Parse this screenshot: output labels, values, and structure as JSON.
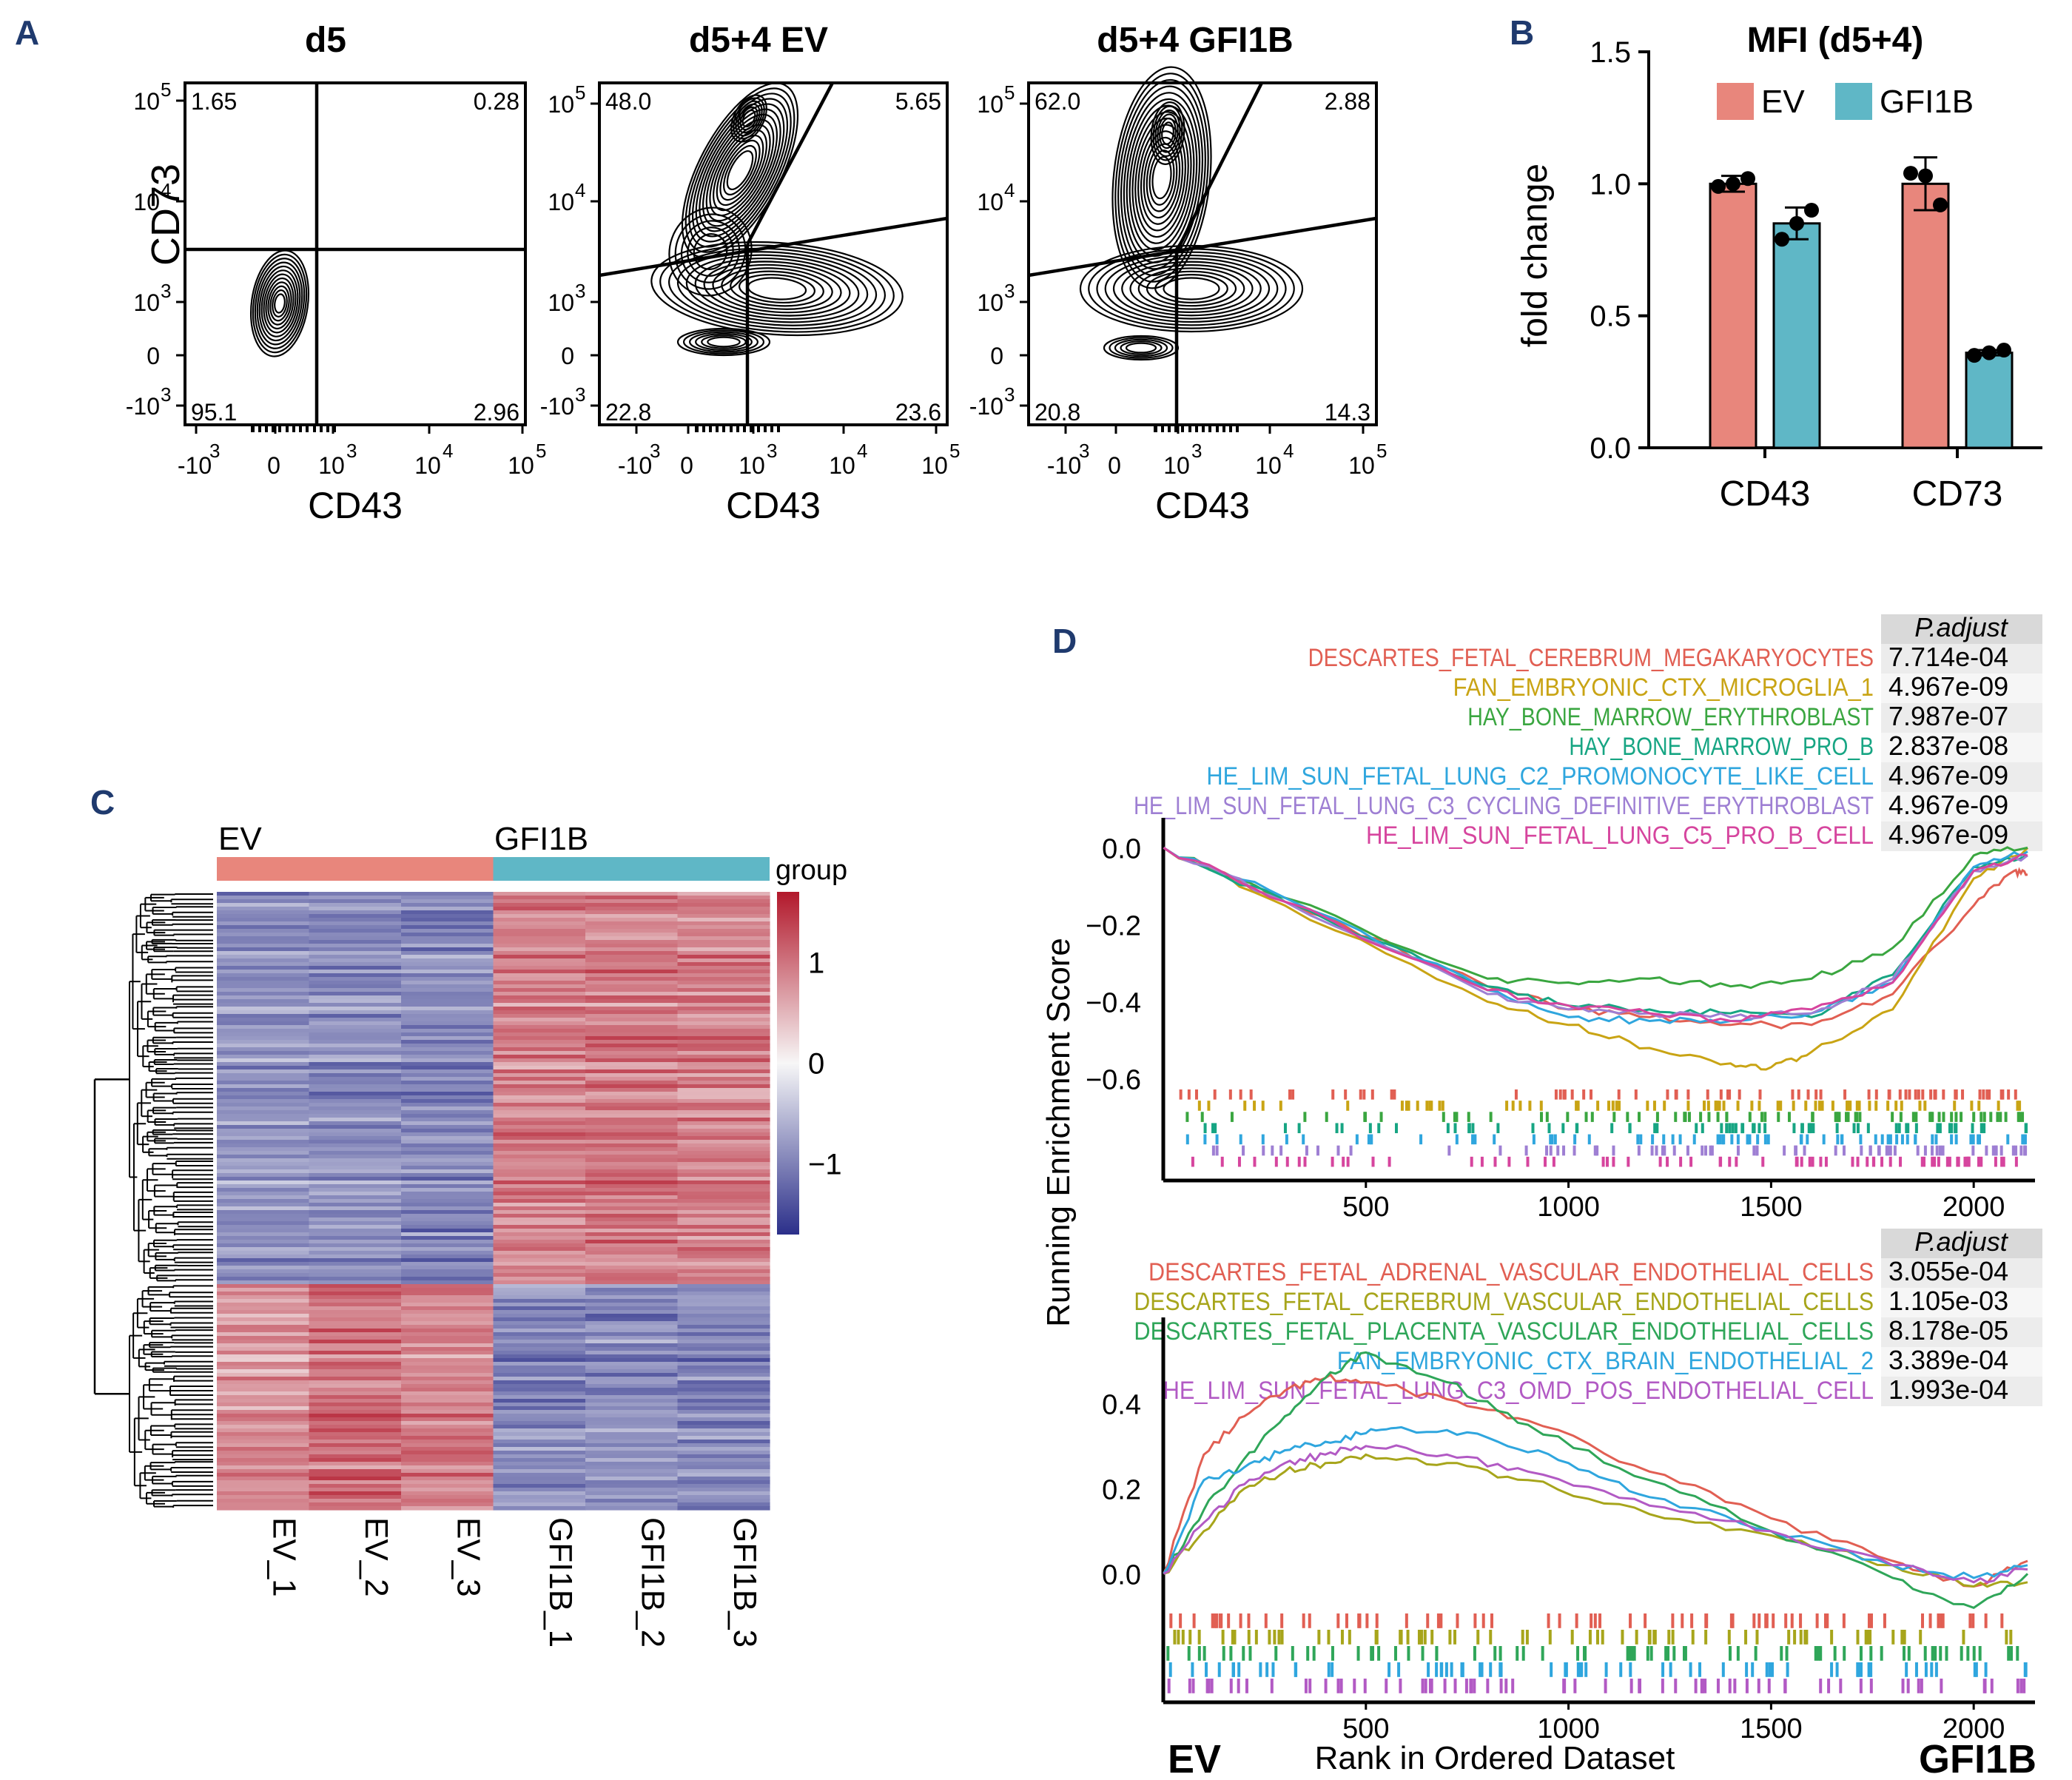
{
  "panel_letters": {
    "A": "A",
    "B": "B",
    "C": "C",
    "D": "D"
  },
  "colors": {
    "ev": "#e8867c",
    "gfi1b": "#5fb7c6",
    "heat_high": "#b2182b",
    "heat_mid": "#f7f7f7",
    "heat_low": "#2b2f8a",
    "gsea": [
      "#e15f53",
      "#c9a414",
      "#3aa640",
      "#17a583",
      "#2fa6de",
      "#9e7fd3",
      "#d6459e"
    ],
    "gsea2": [
      "#e15f53",
      "#a7a51b",
      "#2fa659",
      "#2fa6de",
      "#b25ac4"
    ]
  },
  "panelA": {
    "plots": [
      {
        "title": "d5",
        "quadrants": [
          "1.65",
          "0.28",
          "95.1",
          "2.96"
        ]
      },
      {
        "title": "d5+4 EV",
        "quadrants": [
          "48.0",
          "5.65",
          "22.8",
          "23.6"
        ]
      },
      {
        "title": "d5+4 GFI1B",
        "quadrants": [
          "62.0",
          "2.88",
          "20.8",
          "14.3"
        ]
      }
    ],
    "xlabel": "CD43",
    "ylabel": "CD73",
    "yticks": [
      "10",
      "10",
      "10",
      "0",
      "-10"
    ],
    "yexp": [
      "5",
      "4",
      "3",
      "",
      "3"
    ],
    "xticks": [
      "-10",
      "0",
      "10",
      "10",
      "10"
    ],
    "xexp": [
      "3",
      "",
      "3",
      "4",
      "5"
    ]
  },
  "chart_data": [
    {
      "type": "bar",
      "panel": "B",
      "title": "MFI (d5+4)",
      "categories": [
        "CD43",
        "CD73"
      ],
      "series": [
        {
          "name": "EV",
          "values": [
            1.0,
            1.0
          ],
          "errors": [
            0.03,
            0.1
          ],
          "points": [
            [
              0.99,
              1.0,
              1.02
            ],
            [
              1.04,
              1.03,
              0.92
            ]
          ]
        },
        {
          "name": "GFI1B",
          "values": [
            0.85,
            0.36
          ],
          "errors": [
            0.06,
            0.01
          ],
          "points": [
            [
              0.79,
              0.85,
              0.9
            ],
            [
              0.35,
              0.36,
              0.37
            ]
          ]
        }
      ],
      "ylabel": "fold change",
      "ylim": [
        0,
        1.5
      ],
      "yticks": [
        "0.0",
        "0.5",
        "1.0",
        "1.5"
      ],
      "legend": "top"
    },
    {
      "type": "heatmap",
      "panel": "C",
      "columns": [
        "EV_1",
        "EV_2",
        "EV_3",
        "GFI1B_1",
        "GFI1B_2",
        "GFI1B_3"
      ],
      "groups": [
        {
          "name": "EV",
          "columns": 3
        },
        {
          "name": "GFI1B",
          "columns": 3
        }
      ],
      "annotation_label": "group",
      "colorbar_ticks": [
        "1",
        "0",
        "−1"
      ],
      "colorbar_range": [
        -1.7,
        1.7
      ],
      "blocks": [
        {
          "fraction": 0.634,
          "mean": [
            -0.8,
            -0.85,
            -0.9,
            0.85,
            0.9,
            0.85
          ]
        },
        {
          "fraction": 0.366,
          "mean": [
            0.75,
            1.0,
            0.85,
            -0.9,
            -0.85,
            -0.9
          ]
        }
      ]
    },
    {
      "type": "line",
      "panel": "D-top",
      "header": "P.adjust",
      "series": [
        {
          "name": "DESCARTES_FETAL_CEREBRUM_MEGAKARYOCYTES",
          "padj": "7.714e-04",
          "x": [
            1,
            300,
            800,
            1000,
            1200,
            1400,
            1600,
            1800,
            2000,
            2100,
            2133
          ],
          "y": [
            0,
            -0.14,
            -0.36,
            -0.42,
            -0.44,
            -0.46,
            -0.46,
            -0.38,
            -0.15,
            -0.06,
            -0.07
          ]
        },
        {
          "name": "FAN_EMBRYONIC_CTX_MICROGLIA_1",
          "padj": "4.967e-09",
          "x": [
            1,
            300,
            800,
            1000,
            1200,
            1400,
            1500,
            1600,
            1800,
            2000,
            2133
          ],
          "y": [
            0,
            -0.15,
            -0.4,
            -0.46,
            -0.52,
            -0.56,
            -0.57,
            -0.53,
            -0.42,
            -0.08,
            0
          ]
        },
        {
          "name": "HAY_BONE_MARROW_ERYTHROBLAST",
          "padj": "7.987e-07",
          "x": [
            1,
            300,
            800,
            1000,
            1200,
            1400,
            1600,
            1800,
            2000,
            2133
          ],
          "y": [
            0,
            -0.13,
            -0.34,
            -0.35,
            -0.34,
            -0.36,
            -0.34,
            -0.26,
            -0.02,
            0
          ]
        },
        {
          "name": "HAY_BONE_MARROW_PRO_B",
          "padj": "2.837e-08",
          "x": [
            1,
            300,
            800,
            1000,
            1200,
            1400,
            1600,
            1800,
            2000,
            2133
          ],
          "y": [
            0,
            -0.14,
            -0.36,
            -0.41,
            -0.42,
            -0.43,
            -0.44,
            -0.33,
            -0.05,
            -0.02
          ]
        },
        {
          "name": "HE_LIM_SUN_FETAL_LUNG_C2_PROMONOCYTE_LIKE_CELL",
          "padj": "4.967e-09",
          "x": [
            1,
            300,
            800,
            1000,
            1200,
            1400,
            1600,
            1800,
            2000,
            2133
          ],
          "y": [
            0,
            -0.13,
            -0.37,
            -0.44,
            -0.45,
            -0.45,
            -0.43,
            -0.35,
            -0.05,
            -0.01
          ]
        },
        {
          "name": "HE_LIM_SUN_FETAL_LUNG_C3_CYCLING_DEFINITIVE_ERYTHROBLAST",
          "padj": "4.967e-09",
          "x": [
            1,
            300,
            800,
            1000,
            1200,
            1400,
            1600,
            1800,
            2000,
            2133
          ],
          "y": [
            0,
            -0.14,
            -0.38,
            -0.42,
            -0.43,
            -0.44,
            -0.43,
            -0.34,
            -0.06,
            -0.02
          ]
        },
        {
          "name": "HE_LIM_SUN_FETAL_LUNG_C5_PRO_B_CELL",
          "padj": "4.967e-09",
          "x": [
            1,
            300,
            800,
            1000,
            1200,
            1400,
            1600,
            1800,
            2000,
            2133
          ],
          "y": [
            0,
            -0.14,
            -0.37,
            -0.41,
            -0.43,
            -0.45,
            -0.42,
            -0.35,
            -0.06,
            -0.02
          ]
        }
      ],
      "yticks": [
        "0.0",
        "−0.2",
        "−0.4",
        "−0.6"
      ],
      "ylim": [
        -0.62,
        0.02
      ],
      "xticks": [
        "500",
        "1000",
        "1500",
        "2000"
      ],
      "xlim": [
        0,
        2133
      ]
    },
    {
      "type": "line",
      "panel": "D-bottom",
      "header": "P.adjust",
      "series": [
        {
          "name": "DESCARTES_FETAL_ADRENAL_VASCULAR_ENDOTHELIAL_CELLS",
          "padj": "3.055e-04",
          "x": [
            1,
            100,
            200,
            300,
            400,
            500,
            700,
            900,
            1200,
            1500,
            1800,
            2000,
            2133
          ],
          "y": [
            0,
            0.28,
            0.37,
            0.43,
            0.46,
            0.45,
            0.41,
            0.36,
            0.24,
            0.13,
            0.03,
            -0.03,
            0.03
          ]
        },
        {
          "name": "DESCARTES_FETAL_CEREBRUM_VASCULAR_ENDOTHELIAL_CELLS",
          "padj": "1.105e-03",
          "x": [
            1,
            100,
            200,
            300,
            400,
            500,
            700,
            900,
            1200,
            1500,
            1800,
            2000,
            2133
          ],
          "y": [
            0,
            0.1,
            0.2,
            0.24,
            0.26,
            0.28,
            0.26,
            0.22,
            0.14,
            0.09,
            0.02,
            -0.03,
            -0.02
          ]
        },
        {
          "name": "DESCARTES_FETAL_PLACENTA_VASCULAR_ENDOTHELIAL_CELLS",
          "padj": "8.178e-05",
          "x": [
            1,
            100,
            200,
            300,
            400,
            500,
            700,
            900,
            1200,
            1500,
            1800,
            2000,
            2133
          ],
          "y": [
            0,
            0.15,
            0.27,
            0.37,
            0.46,
            0.52,
            0.45,
            0.35,
            0.22,
            0.1,
            -0.01,
            -0.08,
            0
          ]
        },
        {
          "name": "FAN_EMBRYONIC_CTX_BRAIN_ENDOTHELIAL_2",
          "padj": "3.389e-04",
          "x": [
            1,
            100,
            200,
            300,
            400,
            500,
            600,
            800,
            1000,
            1200,
            1500,
            1800,
            2000,
            2133
          ],
          "y": [
            0,
            0.22,
            0.25,
            0.29,
            0.31,
            0.33,
            0.34,
            0.32,
            0.26,
            0.18,
            0.1,
            0.02,
            -0.01,
            0.02
          ]
        },
        {
          "name": "HE_LIM_SUN_FETAL_LUNG_C3_OMD_POS_ENDOTHELIAL_CELL",
          "padj": "1.993e-04",
          "x": [
            1,
            100,
            200,
            300,
            400,
            500,
            700,
            900,
            1200,
            1500,
            1800,
            2000,
            2133
          ],
          "y": [
            0,
            0.12,
            0.21,
            0.26,
            0.28,
            0.3,
            0.28,
            0.24,
            0.16,
            0.1,
            0.02,
            -0.02,
            0.01
          ]
        }
      ],
      "yticks": [
        "0.4",
        "0.2",
        "0.0"
      ],
      "ylim": [
        -0.05,
        0.55
      ],
      "xticks": [
        "500",
        "1000",
        "1500",
        "2000"
      ],
      "xlim": [
        0,
        2133
      ]
    }
  ],
  "panelD": {
    "ylabel": "Running Enrichment Score",
    "xlabel": "Rank in Ordered Dataset",
    "left_label": "EV",
    "right_label": "GFI1B"
  }
}
